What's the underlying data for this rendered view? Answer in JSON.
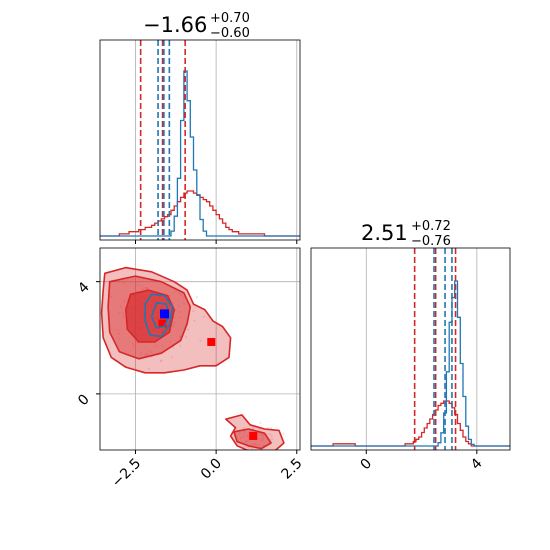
{
  "chart_data": {
    "type": "corner",
    "grid": true,
    "colors": {
      "fit_a": "#1f77b4",
      "fit_b": "#d62728",
      "scatter": "#f4c2cb",
      "grid": "#b0b0b0"
    },
    "parameters": [
      {
        "title_value": "−1.66",
        "title_plus": "+0.70",
        "title_minus": "−0.60",
        "median": -1.66,
        "plus": 0.7,
        "minus": 0.6,
        "range": [
          -3.6,
          2.6
        ],
        "ticks": [
          -2.5,
          0.0,
          2.5
        ],
        "tick_labels": [
          "−2.5",
          "0.0",
          "2.5"
        ]
      },
      {
        "title_value": "2.51",
        "title_plus": "+0.72",
        "title_minus": "−0.76",
        "median": 2.51,
        "plus": 0.72,
        "minus": 0.76,
        "range": [
          -2.0,
          5.2
        ],
        "ticks": [
          0,
          4
        ],
        "tick_labels": [
          "0",
          "4"
        ]
      }
    ],
    "histograms": [
      {
        "param": 0,
        "series": [
          {
            "name": "",
            "color": "#d62728",
            "bins": [
              -3.6,
              2.6
            ],
            "values": [
              0,
              0,
              0,
              0,
              0,
              0,
              1,
              1,
              1,
              2,
              2,
              2,
              3,
              3,
              4,
              4,
              5,
              6,
              7,
              8,
              9,
              10,
              12,
              14,
              16,
              18,
              20,
              21,
              21,
              20,
              19,
              18,
              17,
              16,
              14,
              12,
              10,
              8,
              6,
              4,
              3,
              2,
              2,
              1,
              1,
              1,
              1,
              1,
              1,
              1,
              1,
              0,
              0,
              0,
              0,
              0,
              0,
              0,
              0,
              0,
              0,
              0
            ]
          },
          {
            "name": "",
            "color": "#1f77b4",
            "bins": [
              -3.6,
              2.6
            ],
            "values": [
              0,
              0,
              0,
              0,
              0,
              0,
              0,
              0,
              0,
              0,
              0,
              0,
              0,
              0,
              0,
              0,
              0,
              0,
              0,
              0,
              0,
              0,
              3,
              12,
              35,
              70,
              100,
              82,
              60,
              40,
              25,
              10,
              3,
              0,
              0,
              0,
              0,
              0,
              0,
              0,
              0,
              0,
              0,
              0,
              0,
              0,
              0,
              0,
              0,
              0,
              0,
              0,
              0,
              0,
              0,
              0,
              0,
              0,
              0,
              0,
              0,
              0
            ]
          }
        ],
        "quantile_lines": [
          {
            "color": "#d62728",
            "values": [
              -2.34,
              -1.66,
              -0.96
            ]
          },
          {
            "color": "#1f77b4",
            "values": [
              -1.8,
              -1.62,
              -1.45
            ]
          }
        ]
      },
      {
        "param": 1,
        "series": [
          {
            "name": "",
            "color": "#d62728",
            "bins": [
              -2.0,
              5.2
            ],
            "values": [
              0,
              0,
              0,
              0,
              0,
              0,
              0,
              0,
              1,
              1,
              1,
              1,
              1,
              1,
              1,
              1,
              0,
              0,
              0,
              0,
              0,
              0,
              0,
              0,
              0,
              0,
              0,
              0,
              0,
              0,
              0,
              0,
              0,
              0,
              1,
              1,
              1,
              2,
              3,
              4,
              6,
              8,
              10,
              12,
              14,
              16,
              18,
              19,
              20,
              20,
              19,
              17,
              14,
              10,
              7,
              4,
              2,
              1,
              0,
              0,
              0,
              0,
              0,
              0,
              0,
              0,
              0,
              0,
              0,
              0,
              0,
              0
            ]
          },
          {
            "name": "",
            "color": "#1f77b4",
            "bins": [
              -2.0,
              5.2
            ],
            "values": [
              0,
              0,
              0,
              0,
              0,
              0,
              0,
              0,
              0,
              0,
              0,
              0,
              0,
              0,
              0,
              0,
              0,
              0,
              0,
              0,
              0,
              0,
              0,
              0,
              0,
              0,
              0,
              0,
              0,
              0,
              0,
              0,
              0,
              0,
              0,
              0,
              0,
              0,
              0,
              0,
              0,
              0,
              0,
              0,
              0,
              0,
              2,
              8,
              20,
              45,
              75,
              90,
              100,
              78,
              50,
              30,
              12,
              4,
              1,
              0,
              0,
              0,
              0,
              0,
              0,
              0,
              0,
              0,
              0,
              0,
              0,
              0
            ]
          }
        ],
        "quantile_lines": [
          {
            "color": "#d62728",
            "values": [
              1.75,
              2.51,
              3.23
            ]
          },
          {
            "color": "#1f77b4",
            "values": [
              2.45,
              2.85,
              3.1
            ]
          }
        ]
      }
    ],
    "contours_2d": [
      {
        "color": "#d62728",
        "levels": [
          {
            "opacity": 0.3,
            "polygons": [
              [
                [
                  -3.45,
                  4.3
                ],
                [
                  -2.8,
                  4.5
                ],
                [
                  -2.0,
                  4.35
                ],
                [
                  -1.3,
                  4.0
                ],
                [
                  -0.9,
                  3.7
                ],
                [
                  -0.7,
                  3.2
                ],
                [
                  -0.35,
                  3.0
                ],
                [
                  -0.1,
                  2.6
                ],
                [
                  0.2,
                  2.4
                ],
                [
                  0.45,
                  2.0
                ],
                [
                  0.4,
                  1.3
                ],
                [
                  0.0,
                  1.0
                ],
                [
                  -0.5,
                  1.0
                ],
                [
                  -1.0,
                  0.85
                ],
                [
                  -1.6,
                  0.75
                ],
                [
                  -2.2,
                  0.75
                ],
                [
                  -2.8,
                  0.95
                ],
                [
                  -3.25,
                  1.3
                ],
                [
                  -3.5,
                  2.0
                ],
                [
                  -3.55,
                  2.9
                ],
                [
                  -3.5,
                  3.7
                ]
              ],
              [
                [
                  0.3,
                  -0.9
                ],
                [
                  0.8,
                  -0.75
                ],
                [
                  1.05,
                  -1.1
                ],
                [
                  1.5,
                  -1.25
                ],
                [
                  1.95,
                  -1.3
                ],
                [
                  2.1,
                  -1.75
                ],
                [
                  1.75,
                  -2.1
                ],
                [
                  1.4,
                  -2.35
                ],
                [
                  1.05,
                  -2.05
                ],
                [
                  0.65,
                  -1.85
                ],
                [
                  0.45,
                  -1.5
                ],
                [
                  0.6,
                  -1.2
                ]
              ]
            ]
          },
          {
            "opacity": 0.45,
            "polygons": [
              [
                [
                  -3.3,
                  4.0
                ],
                [
                  -2.5,
                  4.2
                ],
                [
                  -1.7,
                  4.0
                ],
                [
                  -1.0,
                  3.6
                ],
                [
                  -0.8,
                  3.1
                ],
                [
                  -0.9,
                  2.5
                ],
                [
                  -1.1,
                  1.9
                ],
                [
                  -1.7,
                  1.45
                ],
                [
                  -2.4,
                  1.25
                ],
                [
                  -3.0,
                  1.5
                ],
                [
                  -3.3,
                  2.2
                ],
                [
                  -3.35,
                  3.1
                ]
              ],
              [
                [
                  0.55,
                  -1.35
                ],
                [
                  1.0,
                  -1.25
                ],
                [
                  1.5,
                  -1.4
                ],
                [
                  1.7,
                  -1.75
                ],
                [
                  1.4,
                  -1.95
                ],
                [
                  1.0,
                  -1.85
                ],
                [
                  0.65,
                  -1.7
                ]
              ]
            ]
          },
          {
            "opacity": 0.65,
            "polygons": [
              [
                [
                  -2.65,
                  3.55
                ],
                [
                  -2.1,
                  3.7
                ],
                [
                  -1.5,
                  3.5
                ],
                [
                  -1.3,
                  3.0
                ],
                [
                  -1.45,
                  2.2
                ],
                [
                  -1.9,
                  1.85
                ],
                [
                  -2.4,
                  1.85
                ],
                [
                  -2.75,
                  2.3
                ],
                [
                  -2.8,
                  3.0
                ]
              ]
            ]
          }
        ],
        "markers": [
          [
            -1.66,
            2.51
          ],
          [
            -0.15,
            1.85
          ],
          [
            1.15,
            -1.5
          ]
        ]
      },
      {
        "color": "#1f77b4",
        "levels": [
          {
            "opacity": 0.0,
            "polygons": [
              [
                [
                  -2.0,
                  3.55
                ],
                [
                  -1.6,
                  3.5
                ],
                [
                  -1.35,
                  3.1
                ],
                [
                  -1.45,
                  2.45
                ],
                [
                  -1.7,
                  2.05
                ],
                [
                  -2.05,
                  2.1
                ],
                [
                  -2.2,
                  2.6
                ],
                [
                  -2.2,
                  3.2
                ]
              ]
            ]
          },
          {
            "opacity": 0.0,
            "polygons": [
              [
                [
                  -1.85,
                  3.25
                ],
                [
                  -1.55,
                  3.2
                ],
                [
                  -1.45,
                  2.8
                ],
                [
                  -1.6,
                  2.4
                ],
                [
                  -1.85,
                  2.35
                ],
                [
                  -2.0,
                  2.75
                ]
              ]
            ]
          }
        ],
        "markers": [
          [
            -1.6,
            2.85
          ]
        ]
      }
    ]
  }
}
